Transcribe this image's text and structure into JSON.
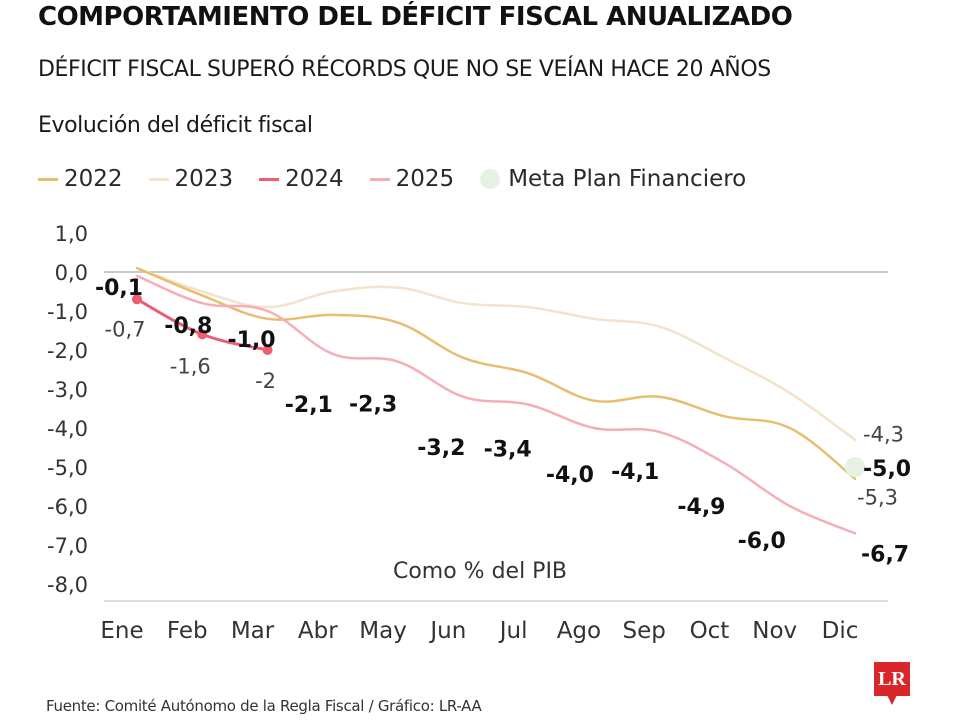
{
  "header": {
    "title": "COMPORTAMIENTO DEL DÉFICIT FISCAL ANUALIZADO",
    "subtitle": "DÉFICIT FISCAL SUPERÓ RÉCORDS QUE NO SE VEÍAN HACE 20 AÑOS",
    "chart_title": "Evolución del déficit fiscal"
  },
  "footer": {
    "source": "Fuente: Comité Autónomo de la Regla Fiscal / Gráfico: LR-AA",
    "logo_text": "LR"
  },
  "colors": {
    "2022": "#e8bd6f",
    "2023": "#f3e2cc",
    "2024": "#ee5c71",
    "2025": "#f6aeb6",
    "meta": "#e6f1e3",
    "logo": "#d9262b"
  },
  "chart_data": {
    "type": "line",
    "title": "Evolución del déficit fiscal",
    "annotation": "Como % del PIB",
    "xlabel": "",
    "ylabel": "",
    "categories": [
      "Ene",
      "Feb",
      "Mar",
      "Abr",
      "May",
      "Jun",
      "Jul",
      "Ago",
      "Sep",
      "Oct",
      "Nov",
      "Dic"
    ],
    "y_ticks": [
      "1,0",
      "0,0",
      "-1,0",
      "-2,0",
      "-3,0",
      "-4,0",
      "-5,0",
      "-6,0",
      "-7,0",
      "-8,0"
    ],
    "ylim": [
      -8,
      1
    ],
    "grid": "zero-line only",
    "legend_position": "top-left",
    "legend": [
      "2022",
      "2023",
      "2024",
      "2025",
      "Meta Plan Financiero"
    ],
    "series": [
      {
        "name": "2022",
        "values": [
          0.1,
          -0.6,
          -1.2,
          -1.1,
          -1.3,
          -2.2,
          -2.6,
          -3.3,
          -3.2,
          -3.7,
          -4.0,
          -5.3
        ],
        "end_label": "-5,3"
      },
      {
        "name": "2023",
        "values": [
          0.1,
          -0.5,
          -0.9,
          -0.5,
          -0.4,
          -0.8,
          -0.9,
          -1.2,
          -1.4,
          -2.2,
          -3.1,
          -4.3
        ],
        "end_label": "-4,3"
      },
      {
        "name": "2024",
        "values": [
          -0.7,
          -1.6,
          -2.0
        ],
        "point_labels": [
          "-0,7",
          "-1,6",
          "-2"
        ],
        "markers": true
      },
      {
        "name": "2025",
        "values": [
          -0.1,
          -0.8,
          -1.0,
          -2.1,
          -2.3,
          -3.2,
          -3.4,
          -4.0,
          -4.1,
          -4.9,
          -6.0,
          -6.7
        ],
        "point_labels": [
          "-0,1",
          "-0,8",
          "-1,0",
          "-2,1",
          "-2,3",
          "-3,2",
          "-3,4",
          "-4,0",
          "-4,1",
          "-4,9",
          "-6,0",
          "-6,7"
        ]
      }
    ],
    "meta_plan_financiero": {
      "category": "Dic",
      "value": -5.0,
      "label": "-5,0"
    }
  }
}
